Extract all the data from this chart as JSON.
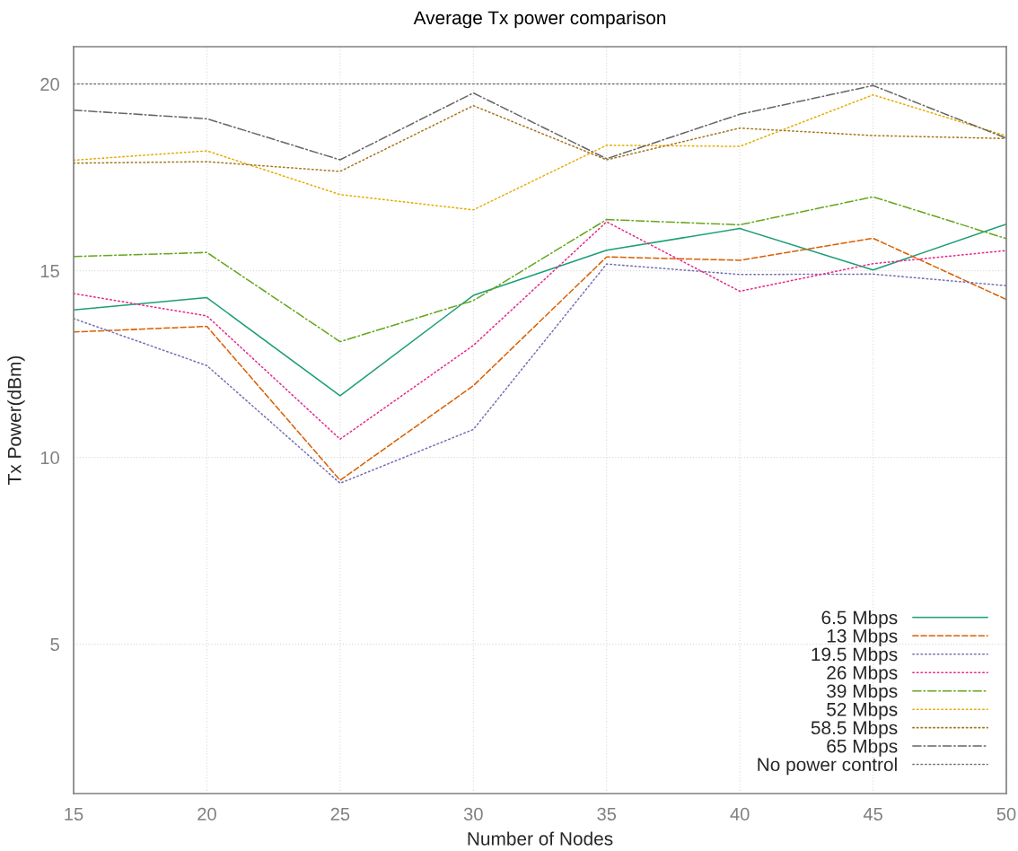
{
  "chart_data": {
    "type": "line",
    "title": "Average Tx power comparison",
    "xlabel": "Number of Nodes",
    "ylabel": "Tx Power(dBm)",
    "x": [
      15,
      20,
      25,
      30,
      35,
      40,
      45,
      50
    ],
    "xlim": [
      15,
      50
    ],
    "xticks": [
      15,
      20,
      25,
      30,
      35,
      40,
      45,
      50
    ],
    "ylim": [
      1,
      21
    ],
    "yticks": [
      5,
      10,
      15,
      20
    ],
    "grid": true,
    "legend": "bottom right",
    "series": [
      {
        "name": "6.5 Mbps",
        "color": "#1b9e77",
        "line_style": "solid",
        "values": [
          13.95,
          14.28,
          11.65,
          14.34,
          15.55,
          16.13,
          15.02,
          16.25
        ]
      },
      {
        "name": "13 Mbps",
        "color": "#d95f02",
        "line_style": "dashed",
        "values": [
          13.36,
          13.51,
          9.39,
          11.92,
          15.37,
          15.28,
          15.87,
          14.23
        ]
      },
      {
        "name": "19.5 Mbps",
        "color": "#7570b3",
        "line_style": "dotted",
        "values": [
          13.72,
          12.46,
          9.31,
          10.75,
          15.18,
          14.9,
          14.91,
          14.6
        ]
      },
      {
        "name": "26 Mbps",
        "color": "#e7298a",
        "line_style": "dotted",
        "values": [
          14.39,
          13.79,
          10.49,
          13.0,
          16.31,
          14.45,
          15.19,
          15.54
        ]
      },
      {
        "name": "39 Mbps",
        "color": "#66a61e",
        "line_style": "dashdot",
        "values": [
          15.38,
          15.49,
          13.1,
          14.2,
          16.37,
          16.23,
          16.98,
          15.86
        ]
      },
      {
        "name": "52 Mbps",
        "color": "#e6ab02",
        "line_style": "dotted",
        "values": [
          17.96,
          18.21,
          17.04,
          16.63,
          18.36,
          18.33,
          19.71,
          18.61
        ]
      },
      {
        "name": "58.5 Mbps",
        "color": "#a6761d",
        "line_style": "dotted",
        "values": [
          17.88,
          17.92,
          17.66,
          19.42,
          17.97,
          18.82,
          18.62,
          18.54
        ]
      },
      {
        "name": "65 Mbps",
        "color": "#666666",
        "line_style": "dashdot",
        "values": [
          19.3,
          19.07,
          17.97,
          19.76,
          18.0,
          19.19,
          19.96,
          18.55
        ]
      },
      {
        "name": "No power control",
        "color": "#777777",
        "line_style": "dotted",
        "values": [
          20,
          20,
          20,
          20,
          20,
          20,
          20,
          20
        ]
      }
    ]
  }
}
